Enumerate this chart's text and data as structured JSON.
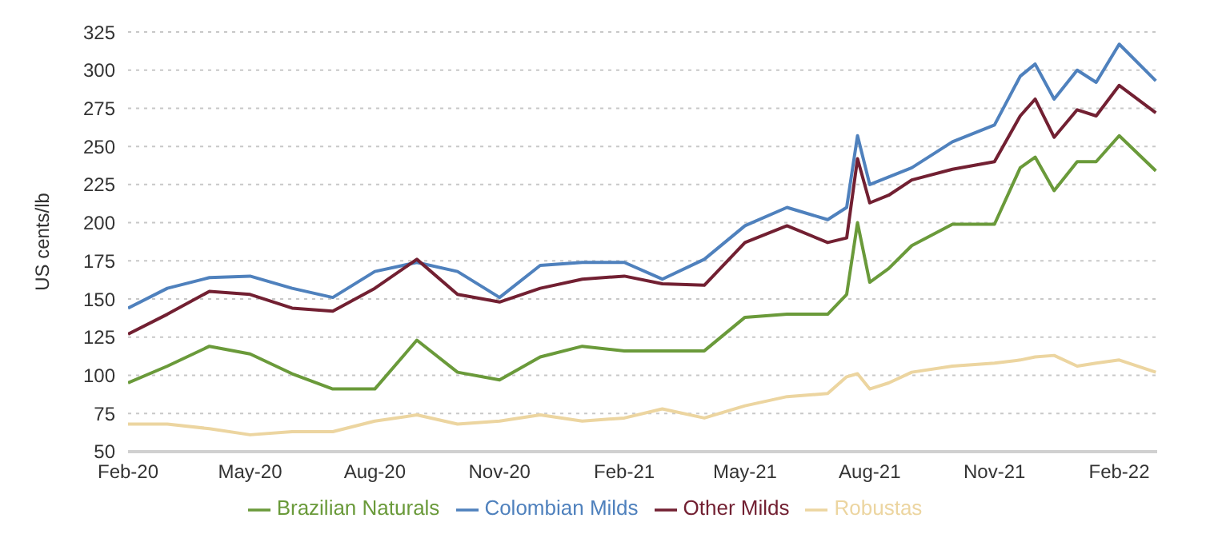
{
  "chart_data": {
    "type": "line",
    "ylabel": "US cents/lb",
    "x": [
      "2020-02-01",
      "2020-03-01",
      "2020-04-01",
      "2020-05-01",
      "2020-06-01",
      "2020-07-01",
      "2020-08-01",
      "2020-09-01",
      "2020-10-01",
      "2020-11-01",
      "2020-12-01",
      "2021-01-01",
      "2021-02-01",
      "2021-03-01",
      "2021-04-01",
      "2021-05-01",
      "2021-06-01",
      "2021-07-01",
      "2021-07-15",
      "2021-07-23",
      "2021-08-01",
      "2021-08-15",
      "2021-09-01",
      "2021-10-01",
      "2021-11-01",
      "2021-11-20",
      "2021-12-01",
      "2021-12-15",
      "2022-01-01",
      "2022-01-15",
      "2022-02-01",
      "2022-02-28"
    ],
    "series": [
      {
        "name": "Colombian Milds",
        "color": "#4f81bd",
        "values": [
          144,
          157,
          164,
          165,
          157,
          151,
          168,
          174,
          168,
          151,
          172,
          174,
          174,
          163,
          176,
          198,
          210,
          202,
          210,
          257,
          225,
          230,
          236,
          253,
          264,
          296,
          304,
          281,
          300,
          292,
          317,
          293
        ]
      },
      {
        "name": "Other Milds",
        "color": "#722032",
        "values": [
          127,
          140,
          155,
          153,
          144,
          142,
          157,
          176,
          153,
          148,
          157,
          163,
          165,
          160,
          159,
          187,
          198,
          187,
          190,
          242,
          213,
          218,
          228,
          235,
          240,
          270,
          281,
          256,
          274,
          270,
          290,
          272
        ]
      },
      {
        "name": "Brazilian Naturals",
        "color": "#6a9a3a",
        "values": [
          95,
          106,
          119,
          114,
          101,
          91,
          91,
          123,
          102,
          97,
          112,
          119,
          116,
          116,
          116,
          138,
          140,
          140,
          153,
          200,
          161,
          170,
          185,
          199,
          199,
          236,
          243,
          221,
          240,
          240,
          257,
          234
        ]
      },
      {
        "name": "Robustas",
        "color": "#ecd5a0",
        "values": [
          68,
          68,
          65,
          61,
          63,
          63,
          70,
          74,
          68,
          70,
          74,
          70,
          72,
          78,
          72,
          80,
          86,
          88,
          99,
          101,
          91,
          95,
          102,
          106,
          108,
          110,
          112,
          113,
          106,
          108,
          110,
          102
        ]
      }
    ],
    "xlim": [
      "2020-02-01",
      "2022-03-01"
    ],
    "xticks": [
      {
        "value": "2020-02-01",
        "label": "Feb-20"
      },
      {
        "value": "2020-05-01",
        "label": "May-20"
      },
      {
        "value": "2020-08-01",
        "label": "Aug-20"
      },
      {
        "value": "2020-11-01",
        "label": "Nov-20"
      },
      {
        "value": "2021-02-01",
        "label": "Feb-21"
      },
      {
        "value": "2021-05-01",
        "label": "May-21"
      },
      {
        "value": "2021-08-01",
        "label": "Aug-21"
      },
      {
        "value": "2021-11-01",
        "label": "Nov-21"
      },
      {
        "value": "2022-02-01",
        "label": "Feb-22"
      }
    ],
    "ylim": [
      50,
      325
    ],
    "yticks": [
      50,
      75,
      100,
      125,
      150,
      175,
      200,
      225,
      250,
      275,
      300,
      325
    ],
    "grid": "y",
    "legend": "bottom",
    "marker": "none",
    "line_style": "solid"
  }
}
